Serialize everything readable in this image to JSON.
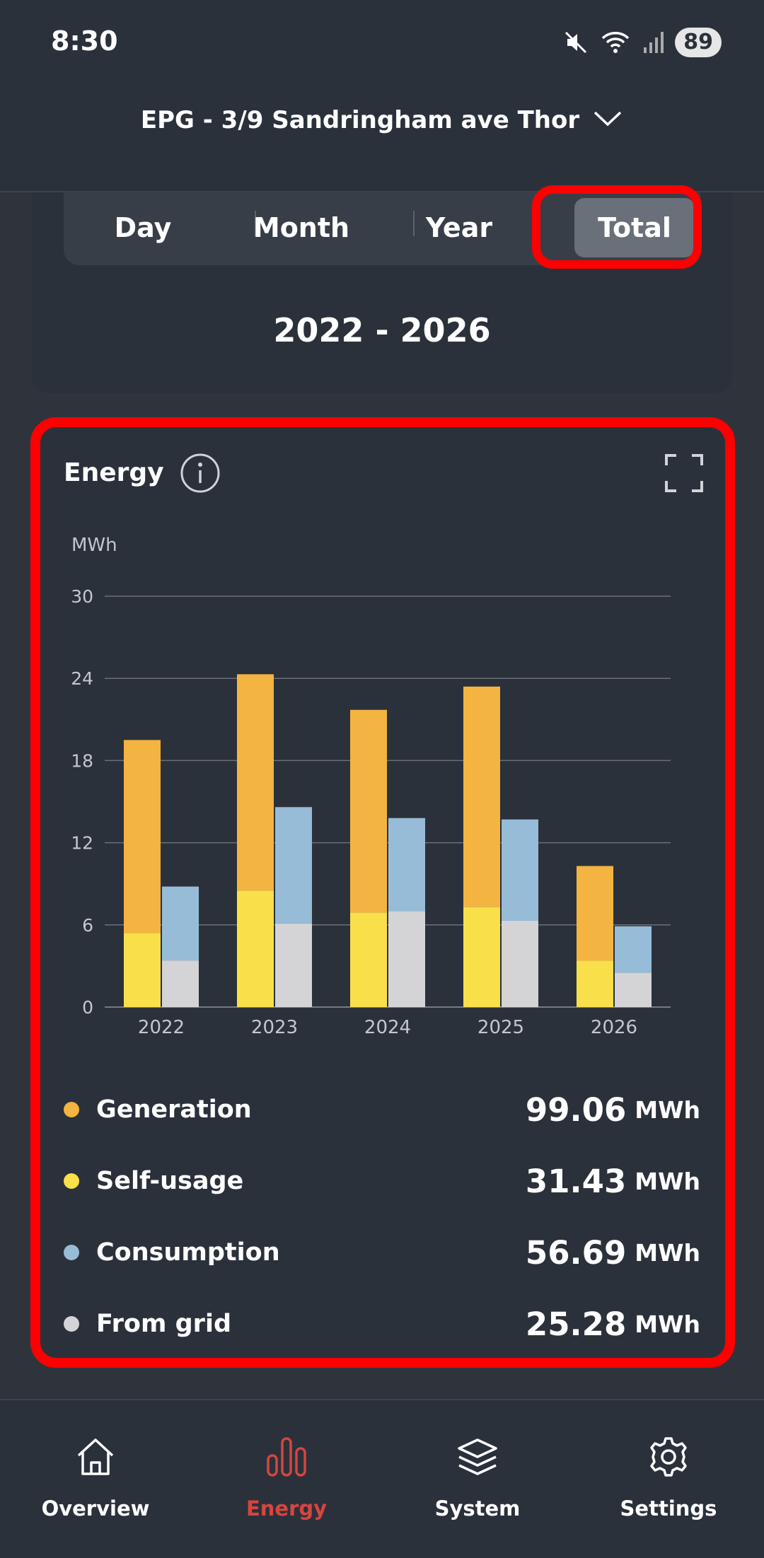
{
  "status_bar": {
    "time": "8:30",
    "battery": "89"
  },
  "header": {
    "site_name": "EPG - 3/9 Sandringham ave Thor"
  },
  "period_tabs": [
    {
      "label": "Day",
      "active": false
    },
    {
      "label": "Month",
      "active": false
    },
    {
      "label": "Year",
      "active": false
    },
    {
      "label": "Total",
      "active": true
    }
  ],
  "period_range": "2022 - 2026",
  "energy_card": {
    "title": "Energy"
  },
  "chart_data": {
    "type": "bar",
    "ylabel": "MWh",
    "ylim": [
      0,
      30
    ],
    "yticks": [
      0,
      6,
      12,
      18,
      24,
      30
    ],
    "categories": [
      "2022",
      "2023",
      "2024",
      "2025",
      "2026"
    ],
    "grid": true,
    "series": [
      {
        "name": "Generation",
        "stack": "generation",
        "total_values": [
          19.5,
          24.3,
          21.7,
          23.4,
          10.3
        ],
        "color": "#f3b441"
      },
      {
        "name": "Self-usage",
        "stack": "generation",
        "values": [
          5.4,
          8.5,
          6.9,
          7.3,
          3.4
        ],
        "color": "#f9e04a"
      },
      {
        "name": "Consumption",
        "stack": "consumption",
        "total_values": [
          8.8,
          14.6,
          13.8,
          13.7,
          5.9
        ],
        "color": "#97bcd7"
      },
      {
        "name": "From grid",
        "stack": "consumption",
        "values": [
          3.4,
          6.1,
          7.0,
          6.3,
          2.5
        ],
        "color": "#d4d4d6"
      }
    ]
  },
  "legend": [
    {
      "label": "Generation",
      "value": "99.06",
      "unit": "MWh",
      "color": "#f3b441"
    },
    {
      "label": "Self-usage",
      "value": "31.43",
      "unit": "MWh",
      "color": "#f9e04a"
    },
    {
      "label": "Consumption",
      "value": "56.69",
      "unit": "MWh",
      "color": "#97bcd7"
    },
    {
      "label": "From grid",
      "value": "25.28",
      "unit": "MWh",
      "color": "#d4d4d6"
    }
  ],
  "bottom_nav": [
    {
      "label": "Overview",
      "icon": "home-icon",
      "active": false
    },
    {
      "label": "Energy",
      "icon": "bar-chart-icon",
      "active": true
    },
    {
      "label": "System",
      "icon": "layers-icon",
      "active": false
    },
    {
      "label": "Settings",
      "icon": "gear-icon",
      "active": false
    }
  ]
}
